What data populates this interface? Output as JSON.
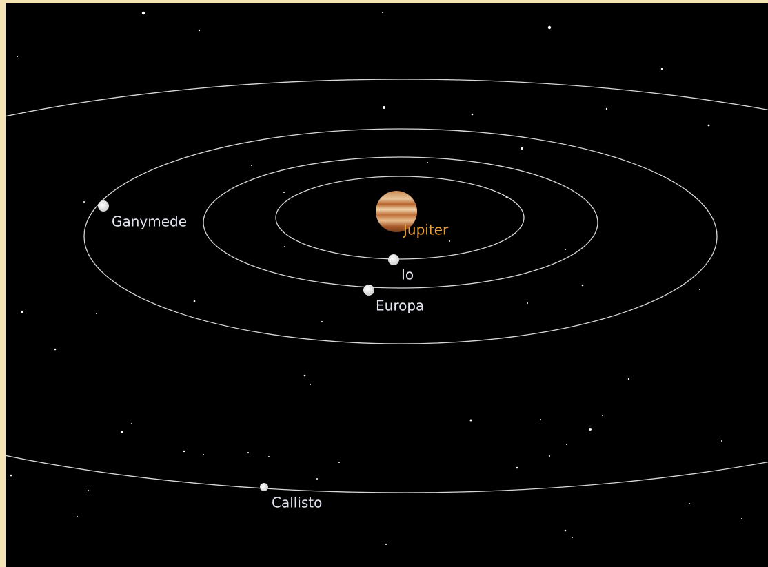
{
  "bodies": [
    {
      "label": "Jupiter"
    },
    {
      "label": "Io"
    },
    {
      "label": "Europa"
    },
    {
      "label": "Ganymede"
    },
    {
      "label": "Callisto"
    }
  ]
}
